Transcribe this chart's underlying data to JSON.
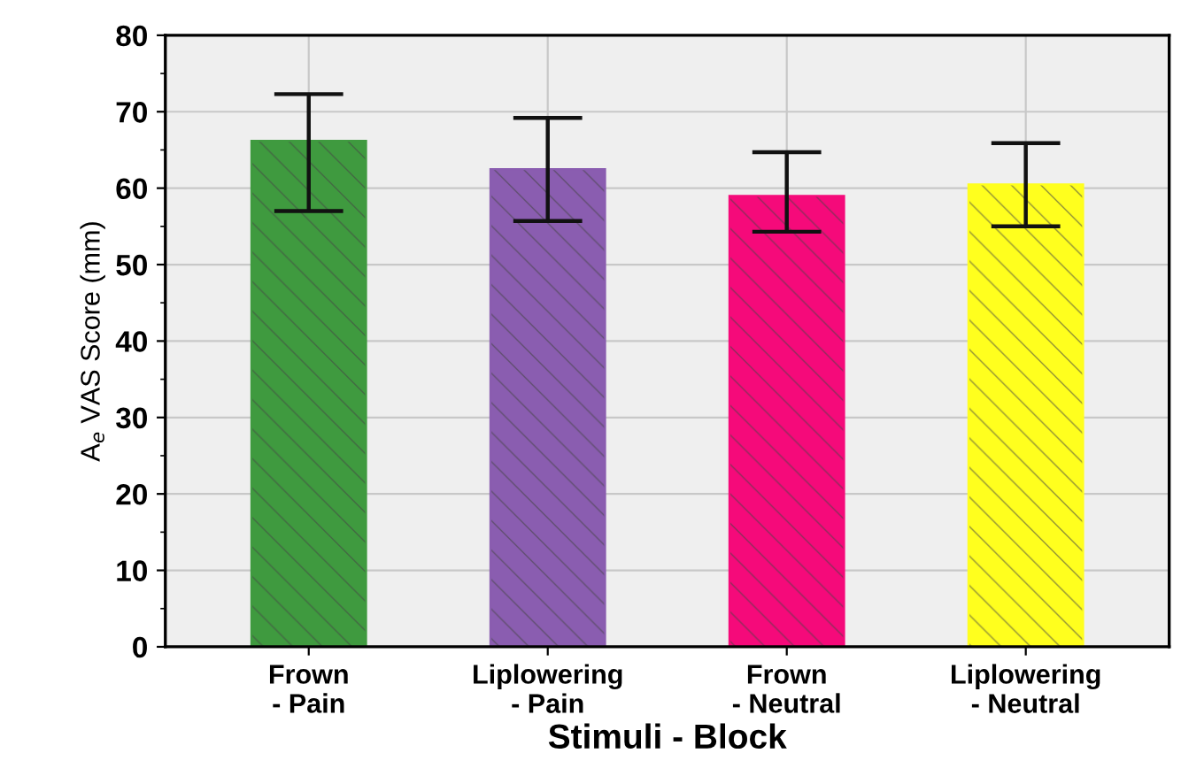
{
  "chart_data": {
    "type": "bar",
    "xlabel": "Stimuli - Block",
    "ylabel": "A$_{e}$ VAS Score (mm)",
    "categories": [
      "Frown\n- Pain",
      "Liplowering\n- Pain",
      "Frown\n- Neutral",
      "Liplowering\n- Neutral"
    ],
    "values": [
      66.2,
      62.5,
      59.0,
      60.5
    ],
    "colors": [
      "#3f9a3f",
      "#8a5db0",
      "#f50a7a",
      "#ffff1e"
    ],
    "errors": [
      [
        57.0,
        72.3
      ],
      [
        55.7,
        69.2
      ],
      [
        54.3,
        64.7
      ],
      [
        55.0,
        65.9
      ]
    ],
    "ylim": [
      0,
      80
    ],
    "yticks": [
      0,
      10,
      20,
      30,
      40,
      50,
      60,
      70,
      80
    ],
    "grid": true
  }
}
